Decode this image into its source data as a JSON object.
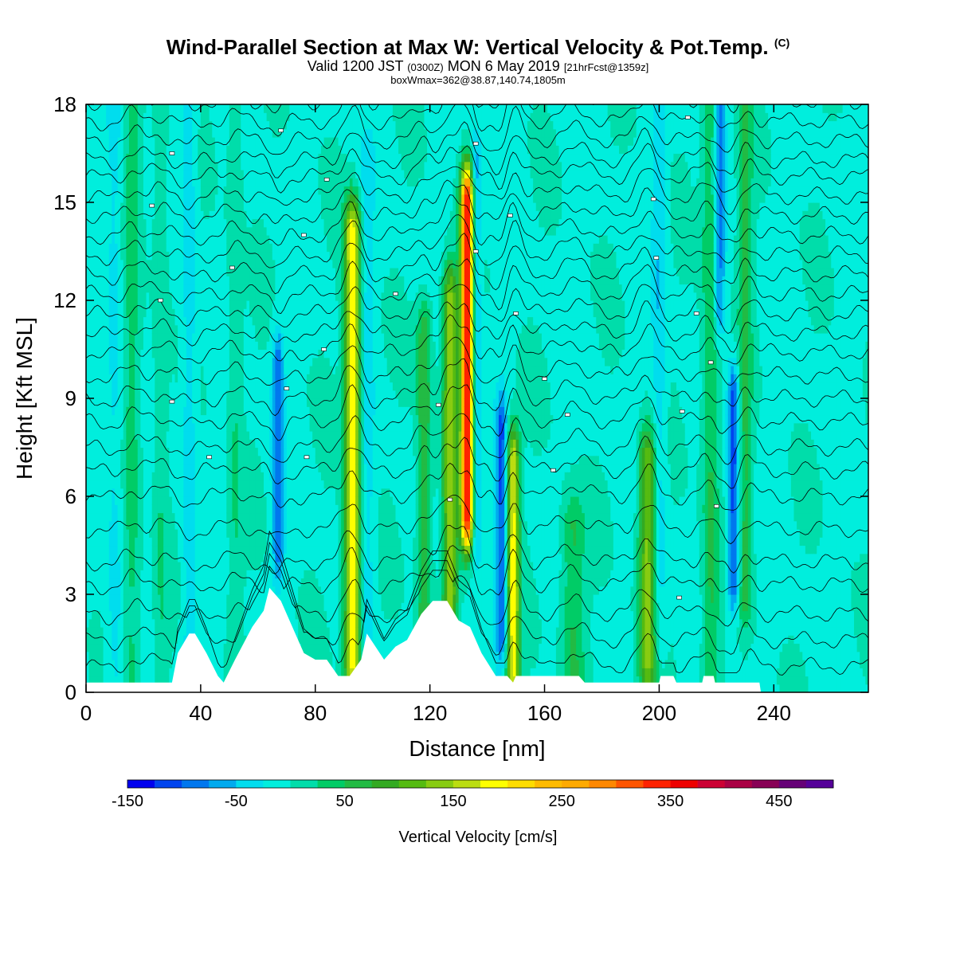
{
  "header": {
    "title_main": "Wind-Parallel Section at Max W: Vertical Velocity & Pot.Temp.",
    "title_mark": "(C)",
    "valid_a": "Valid 1200 JST",
    "valid_b": "(0300Z)",
    "valid_c": "MON 6 May 2019",
    "valid_d": "[21hrFcst@1359z]",
    "box_info": "boxWmax=362@38.87,140.74,1805m"
  },
  "chart_data": {
    "type": "heatmap",
    "xlabel": "Distance [nm]",
    "ylabel": "Height [Kft MSL]",
    "xlim": [
      0,
      273
    ],
    "ylim": [
      0,
      18
    ],
    "x_ticks": [
      0,
      40,
      80,
      120,
      160,
      200,
      240
    ],
    "y_ticks": [
      0,
      3,
      6,
      9,
      12,
      15,
      18
    ],
    "colorbar": {
      "title": "Vertical Velocity [cm/s]",
      "min": -150,
      "max": 525,
      "step": 25,
      "tick_values": [
        -150,
        -50,
        50,
        150,
        250,
        350,
        450
      ],
      "tick_labels": [
        "-150",
        "-50",
        "50",
        "150",
        "250",
        "350",
        "450"
      ],
      "colors": [
        "#0000ee",
        "#0044ee",
        "#0077ee",
        "#00aaee",
        "#00ddee",
        "#00eedd",
        "#00ddaa",
        "#00cc66",
        "#22bb44",
        "#33aa22",
        "#55bb11",
        "#88cc11",
        "#bbdd11",
        "#ffff00",
        "#ffdd00",
        "#ffbb00",
        "#ffaa00",
        "#ff8800",
        "#ff5500",
        "#ff2200",
        "#ee0000",
        "#cc0033",
        "#aa0044",
        "#880055",
        "#660077",
        "#550099"
      ]
    },
    "background_value": -5,
    "updraft_bands": [
      {
        "x": 16,
        "w": 3,
        "v": 40,
        "y0": 0,
        "y1": 18
      },
      {
        "x": 26,
        "w": 2.5,
        "v": 30,
        "y0": 0,
        "y1": 18
      },
      {
        "x": 52,
        "w": 2.5,
        "v": 30,
        "y0": 2,
        "y1": 18
      },
      {
        "x": 93,
        "w": 2.8,
        "v": 200,
        "y0": 1,
        "y1": 14
      },
      {
        "x": 118,
        "w": 2.5,
        "v": 80,
        "y0": 0,
        "y1": 11
      },
      {
        "x": 127,
        "w": 2.5,
        "v": 150,
        "y0": 3,
        "y1": 12
      },
      {
        "x": 133,
        "w": 2.2,
        "v": 362,
        "y0": 5.5,
        "y1": 15
      },
      {
        "x": 149,
        "w": 2.2,
        "v": 190,
        "y0": 0.5,
        "y1": 7
      },
      {
        "x": 170,
        "w": 4,
        "v": 60,
        "y0": 0.5,
        "y1": 5
      },
      {
        "x": 196,
        "w": 3,
        "v": 140,
        "y0": 1,
        "y1": 7
      },
      {
        "x": 218,
        "w": 3,
        "v": 60,
        "y0": 0,
        "y1": 18
      },
      {
        "x": 230,
        "w": 2.5,
        "v": 60,
        "y0": 3,
        "y1": 18
      }
    ],
    "downdraft_bands": [
      {
        "x": 10,
        "w": 3,
        "v": -30,
        "y0": 0,
        "y1": 18
      },
      {
        "x": 36,
        "w": 2.5,
        "v": -40,
        "y0": 1,
        "y1": 18
      },
      {
        "x": 67,
        "w": 2,
        "v": -90,
        "y0": 4.5,
        "y1": 10
      },
      {
        "x": 98,
        "w": 2.5,
        "v": -35,
        "y0": 1,
        "y1": 16
      },
      {
        "x": 136,
        "w": 1.8,
        "v": -70,
        "y0": 5,
        "y1": 16
      },
      {
        "x": 145,
        "w": 2,
        "v": -100,
        "y0": 2,
        "y1": 8
      },
      {
        "x": 200,
        "w": 2.5,
        "v": -40,
        "y0": 2,
        "y1": 18
      },
      {
        "x": 221,
        "w": 2,
        "v": -90,
        "y0": 12,
        "y1": 18
      },
      {
        "x": 226,
        "w": 2,
        "v": -110,
        "y0": 3.5,
        "y1": 9
      }
    ],
    "terrain": [
      [
        0,
        0.3
      ],
      [
        30,
        0.3
      ],
      [
        32,
        1.2
      ],
      [
        36,
        1.8
      ],
      [
        38,
        1.8
      ],
      [
        42,
        1.2
      ],
      [
        46,
        0.5
      ],
      [
        48,
        0.3
      ],
      [
        52,
        1.0
      ],
      [
        58,
        2.0
      ],
      [
        62,
        2.5
      ],
      [
        64,
        3.2
      ],
      [
        68,
        2.8
      ],
      [
        72,
        2.0
      ],
      [
        76,
        1.2
      ],
      [
        80,
        1.0
      ],
      [
        84,
        1.0
      ],
      [
        88,
        0.5
      ],
      [
        92,
        0.5
      ],
      [
        96,
        1.0
      ],
      [
        98,
        1.8
      ],
      [
        101,
        1.4
      ],
      [
        104,
        1.0
      ],
      [
        108,
        1.4
      ],
      [
        112,
        1.6
      ],
      [
        117,
        2.4
      ],
      [
        121,
        2.8
      ],
      [
        126,
        2.8
      ],
      [
        130,
        2.2
      ],
      [
        134,
        2.0
      ],
      [
        138,
        1.2
      ],
      [
        143,
        0.5
      ],
      [
        147,
        0.5
      ],
      [
        149,
        0.3
      ],
      [
        150,
        0.5
      ],
      [
        172,
        0.5
      ],
      [
        174,
        0.3
      ],
      [
        200,
        0.3
      ],
      [
        200.5,
        0.5
      ],
      [
        205,
        0.5
      ],
      [
        206,
        0.3
      ],
      [
        215,
        0.3
      ],
      [
        215.5,
        0.5
      ],
      [
        219,
        0.5
      ],
      [
        219.5,
        0.3
      ],
      [
        235,
        0.3
      ],
      [
        235.5,
        0
      ],
      [
        273,
        0
      ]
    ],
    "theta_contours": {
      "count": 30,
      "base_heights": [
        0.8,
        1.6,
        2.4,
        3.3,
        4.0,
        5.0,
        6.0,
        6.8,
        7.5,
        8.3,
        9.0,
        9.7,
        10.4,
        11.0,
        11.6,
        12.2,
        12.8,
        13.4,
        14.0,
        14.6,
        15.2,
        15.8,
        16.3,
        16.9,
        17.5,
        18.1,
        18.7,
        19.3,
        19.9,
        20.5
      ]
    },
    "contour_labels": [
      {
        "x": 30,
        "y": 16.5
      },
      {
        "x": 68,
        "y": 17.2
      },
      {
        "x": 136,
        "y": 16.8
      },
      {
        "x": 210,
        "y": 17.6
      },
      {
        "x": 23,
        "y": 14.9
      },
      {
        "x": 84,
        "y": 15.7
      },
      {
        "x": 148,
        "y": 14.6
      },
      {
        "x": 198,
        "y": 15.1
      },
      {
        "x": 51,
        "y": 13.0
      },
      {
        "x": 76,
        "y": 14.0
      },
      {
        "x": 136,
        "y": 13.5
      },
      {
        "x": 199,
        "y": 13.3
      },
      {
        "x": 26,
        "y": 12.0
      },
      {
        "x": 108,
        "y": 12.2
      },
      {
        "x": 150,
        "y": 11.6
      },
      {
        "x": 213,
        "y": 11.6
      },
      {
        "x": 83,
        "y": 10.5
      },
      {
        "x": 160,
        "y": 9.6
      },
      {
        "x": 218,
        "y": 10.1
      },
      {
        "x": 30,
        "y": 8.9
      },
      {
        "x": 70,
        "y": 9.3
      },
      {
        "x": 123,
        "y": 8.8
      },
      {
        "x": 168,
        "y": 8.5
      },
      {
        "x": 208,
        "y": 8.6
      },
      {
        "x": 43,
        "y": 7.2
      },
      {
        "x": 77,
        "y": 7.2
      },
      {
        "x": 163,
        "y": 6.8
      },
      {
        "x": 127,
        "y": 5.9
      },
      {
        "x": 220,
        "y": 5.7
      },
      {
        "x": 207,
        "y": 2.9
      }
    ]
  }
}
